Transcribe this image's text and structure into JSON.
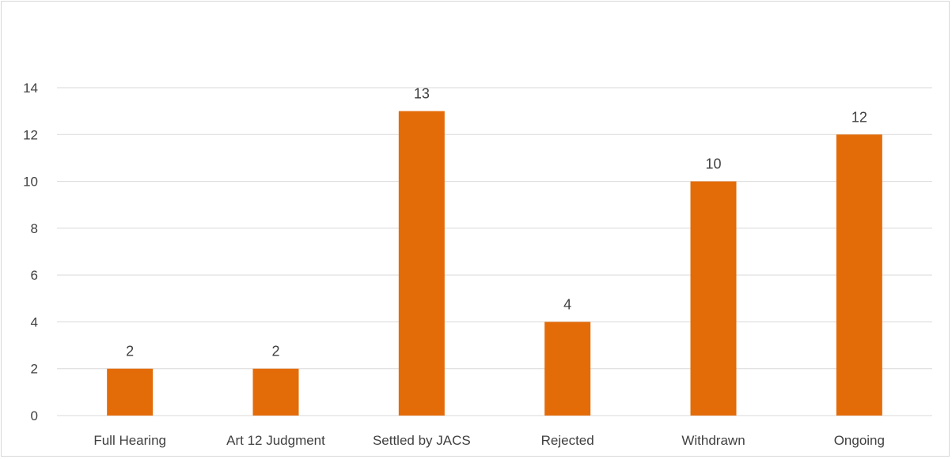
{
  "chart_data": {
    "type": "bar",
    "title": "",
    "xlabel": "",
    "ylabel": "",
    "categories": [
      "Full Hearing",
      "Art 12 Judgment",
      "Settled by JACS",
      "Rejected",
      "Withdrawn",
      "Ongoing"
    ],
    "values": [
      2,
      2,
      13,
      4,
      10,
      12
    ],
    "data_labels": [
      "2",
      "2",
      "13",
      "4",
      "10",
      "12"
    ],
    "yticks": [
      0,
      2,
      4,
      6,
      8,
      10,
      12,
      14
    ],
    "ylim": [
      0,
      14
    ],
    "grid": true,
    "legend": "none",
    "colors": {
      "bar": "#E36C09",
      "grid": "#d9d9d9",
      "text": "#404040"
    }
  }
}
